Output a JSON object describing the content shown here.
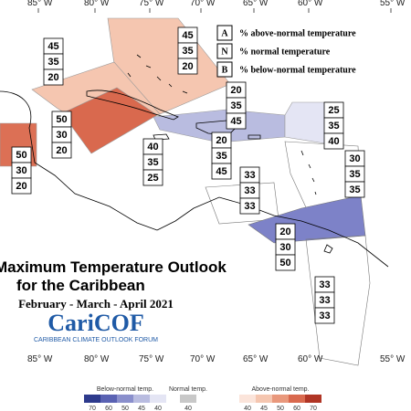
{
  "longitude_labels_top": [
    "85° W",
    "80° W",
    "75° W",
    "70° W",
    "65° W",
    "60° W",
    "55° W"
  ],
  "longitude_labels_bottom": [
    "85° W",
    "80° W",
    "75° W",
    "70° W",
    "65° W",
    "60° W",
    "55° W"
  ],
  "legend": [
    {
      "key": "A",
      "text": "% above-normal temperature"
    },
    {
      "key": "N",
      "text": "% normal temperature"
    },
    {
      "key": "B",
      "text": "% below-normal temperature"
    }
  ],
  "boxes": [
    [
      45,
      35,
      20
    ],
    [
      45,
      35,
      20
    ],
    [
      50,
      30,
      20
    ],
    [
      50,
      30,
      20
    ],
    [
      20,
      35,
      45
    ],
    [
      40,
      35,
      25
    ],
    [
      20,
      35,
      45
    ],
    [
      25,
      35,
      40
    ],
    [
      30,
      35,
      35
    ],
    [
      33,
      33,
      33
    ],
    [
      20,
      30,
      50
    ],
    [
      33,
      33,
      33
    ]
  ],
  "title": {
    "line1": "Maximum Temperature Outlook",
    "line2": "for the Caribbean",
    "period": "February - March - April 2021",
    "logo": "CariCOF",
    "logo_caption": "CARIBBEAN CLIMATE OUTLOOK FORUM"
  },
  "colorbar": {
    "below_title": "Below-normal temp.",
    "below_labels": [
      70,
      60,
      50,
      45,
      40
    ],
    "normal_title": "Normal temp.",
    "normal_labels": [
      40
    ],
    "above_title": "Above-normal temp.",
    "above_labels": [
      40,
      45,
      50,
      60,
      70
    ]
  }
}
